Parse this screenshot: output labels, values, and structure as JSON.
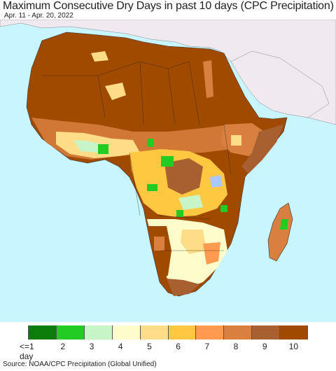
{
  "title": "Maximum Consecutive Dry Days in past 10 days (CPC Precipitation)",
  "date_range": "Apr. 11 - Apr. 20, 2022",
  "source": "Source: NOAA/CPC Precipitation (Global Unified)",
  "legend": {
    "labels": [
      "<=1 day",
      "2",
      "3",
      "4",
      "5",
      "6",
      "7",
      "8",
      "9",
      "10"
    ],
    "colors": [
      "#0a7d0a",
      "#22cc22",
      "#c8f5c8",
      "#fffccc",
      "#ffdd88",
      "#ffc840",
      "#ff9a50",
      "#d98040",
      "#a86030",
      "#a04a00"
    ]
  },
  "map": {
    "ocean_color": "#c8f5ff",
    "non_africa_land_color": "#f0eaf0",
    "dominant_category": "10",
    "region": "Africa"
  }
}
